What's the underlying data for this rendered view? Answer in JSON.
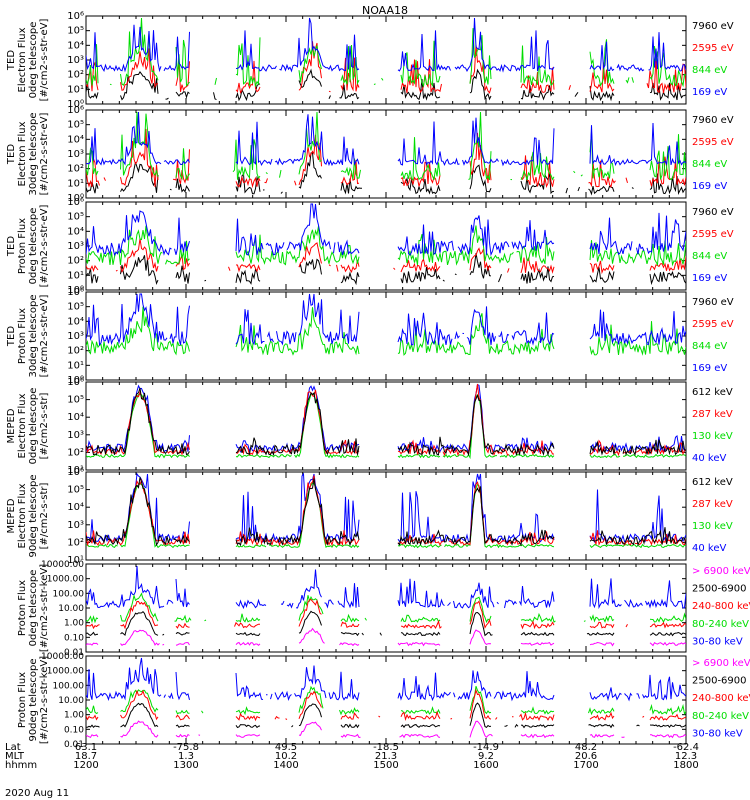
{
  "title": "NOAA18",
  "date_label": "2020 Aug 11",
  "colors": {
    "blue": "#0000ff",
    "red": "#ff0000",
    "green": "#00dd00",
    "black": "#000000",
    "magenta": "#ff00ff"
  },
  "chart_data": {
    "type": "line",
    "x_axis": {
      "time_range": [
        "1200",
        "1800"
      ],
      "rows": [
        {
          "label": "Lat",
          "values": [
            "63.1",
            "-75.8",
            "49.5",
            "-18.5",
            "-14.9",
            "48.2",
            "-62.4"
          ]
        },
        {
          "label": "MLT",
          "values": [
            "18.7",
            "1.3",
            "10.2",
            "21.3",
            "9.2",
            "20.6",
            "12.3"
          ]
        },
        {
          "label": "hhmm",
          "values": [
            "1200",
            "1300",
            "1400",
            "1500",
            "1600",
            "1700",
            "1800"
          ]
        }
      ]
    },
    "panels": [
      {
        "id": "ted-electron-0deg",
        "ylabel_lines": [
          "TED",
          "Electron Flux",
          "0deg telescope",
          "[#/cm2-s-str-eV]"
        ],
        "scale": "log",
        "ylim": [
          1,
          1000000
        ],
        "yticks": [
          "10⁰",
          "10¹",
          "10²",
          "10³",
          "10⁴",
          "10⁵",
          "10⁶"
        ],
        "legend": [
          {
            "label": "7960 eV",
            "color": "black"
          },
          {
            "label": "2595 eV",
            "color": "red"
          },
          {
            "label": "844 eV",
            "color": "green"
          },
          {
            "label": "169 eV",
            "color": "blue"
          }
        ]
      },
      {
        "id": "ted-electron-30deg",
        "ylabel_lines": [
          "TED",
          "Electron Flux",
          "30deg telescope",
          "[#/cm2-s-str-eV]"
        ],
        "scale": "log",
        "ylim": [
          1,
          1000000
        ],
        "yticks": [
          "10⁰",
          "10¹",
          "10²",
          "10³",
          "10⁴",
          "10⁵",
          "10⁶"
        ],
        "legend": [
          {
            "label": "7960 eV",
            "color": "black"
          },
          {
            "label": "2595 eV",
            "color": "red"
          },
          {
            "label": "844 eV",
            "color": "green"
          },
          {
            "label": "169 eV",
            "color": "blue"
          }
        ]
      },
      {
        "id": "ted-proton-0deg",
        "ylabel_lines": [
          "TED",
          "Proton Flux",
          "0deg telescope",
          "[#/cm2-s-str-eV]"
        ],
        "scale": "log",
        "ylim": [
          1,
          1000000
        ],
        "yticks": [
          "10⁰",
          "10¹",
          "10²",
          "10³",
          "10⁴",
          "10⁵",
          "10⁶"
        ],
        "legend": [
          {
            "label": "7960 eV",
            "color": "black"
          },
          {
            "label": "2595 eV",
            "color": "red"
          },
          {
            "label": "844 eV",
            "color": "green"
          },
          {
            "label": "169 eV",
            "color": "blue"
          }
        ]
      },
      {
        "id": "ted-proton-30deg",
        "ylabel_lines": [
          "TED",
          "Proton Flux",
          "30deg telescope",
          "[#/cm2-s-str-eV]"
        ],
        "scale": "log",
        "ylim": [
          1,
          1000000
        ],
        "yticks": [
          "10⁰",
          "10¹",
          "10²",
          "10³",
          "10⁴",
          "10⁵",
          "10⁶"
        ],
        "legend": [
          {
            "label": "7960 eV",
            "color": "black"
          },
          {
            "label": "2595 eV",
            "color": "red"
          },
          {
            "label": "844 eV",
            "color": "green"
          },
          {
            "label": "169 eV",
            "color": "blue"
          }
        ]
      },
      {
        "id": "meped-electron-0deg",
        "ylabel_lines": [
          "MEPED",
          "Electron Flux",
          "0deg telescope",
          "[#/cm2-s-str]"
        ],
        "scale": "log",
        "ylim": [
          10,
          1000000
        ],
        "yticks": [
          "10¹",
          "10²",
          "10³",
          "10⁴",
          "10⁵",
          "10⁶"
        ],
        "legend": [
          {
            "label": "612 keV",
            "color": "black"
          },
          {
            "label": "287 keV",
            "color": "red"
          },
          {
            "label": "130 keV",
            "color": "green"
          },
          {
            "label": "40 keV",
            "color": "blue"
          }
        ]
      },
      {
        "id": "meped-electron-90deg",
        "ylabel_lines": [
          "MEPED",
          "Electron Flux",
          "90deg telescope",
          "[#/cm2-s-str]"
        ],
        "scale": "log",
        "ylim": [
          10,
          1000000
        ],
        "yticks": [
          "10¹",
          "10²",
          "10³",
          "10⁴",
          "10⁵",
          "10⁶"
        ],
        "legend": [
          {
            "label": "612 keV",
            "color": "black"
          },
          {
            "label": "287 keV",
            "color": "red"
          },
          {
            "label": "130 keV",
            "color": "green"
          },
          {
            "label": "40 keV",
            "color": "blue"
          }
        ]
      },
      {
        "id": "meped-proton-0deg",
        "ylabel_lines": [
          "Proton Flux",
          "0deg telescope",
          "[#/cm2-s-str-keV]"
        ],
        "scale": "log",
        "ylim": [
          0.01,
          10000
        ],
        "yticks": [
          "0.01",
          "0.10",
          "1.00",
          "10.00",
          "100.00",
          "1000.00",
          "10000.00"
        ],
        "legend": [
          {
            "label": "> 6900 keV",
            "color": "magenta"
          },
          {
            "label": "2500-6900",
            "color": "black"
          },
          {
            "label": "240-800 keV",
            "color": "red"
          },
          {
            "label": "80-240 keV",
            "color": "green"
          },
          {
            "label": "30-80 keV",
            "color": "blue"
          }
        ]
      },
      {
        "id": "meped-proton-90deg",
        "ylabel_lines": [
          "Proton Flux",
          "90deg telescope",
          "[#/cm2-s-str-keV]"
        ],
        "scale": "log",
        "ylim": [
          0.01,
          10000
        ],
        "yticks": [
          "0.01",
          "0.10",
          "1.00",
          "10.00",
          "100.00",
          "1000.00",
          "10000.00"
        ],
        "legend": [
          {
            "label": "> 6900 keV",
            "color": "magenta"
          },
          {
            "label": "2500-6900",
            "color": "black"
          },
          {
            "label": "240-800 keV",
            "color": "red"
          },
          {
            "label": "80-240 keV",
            "color": "green"
          },
          {
            "label": "30-80 keV",
            "color": "blue"
          }
        ]
      }
    ]
  }
}
